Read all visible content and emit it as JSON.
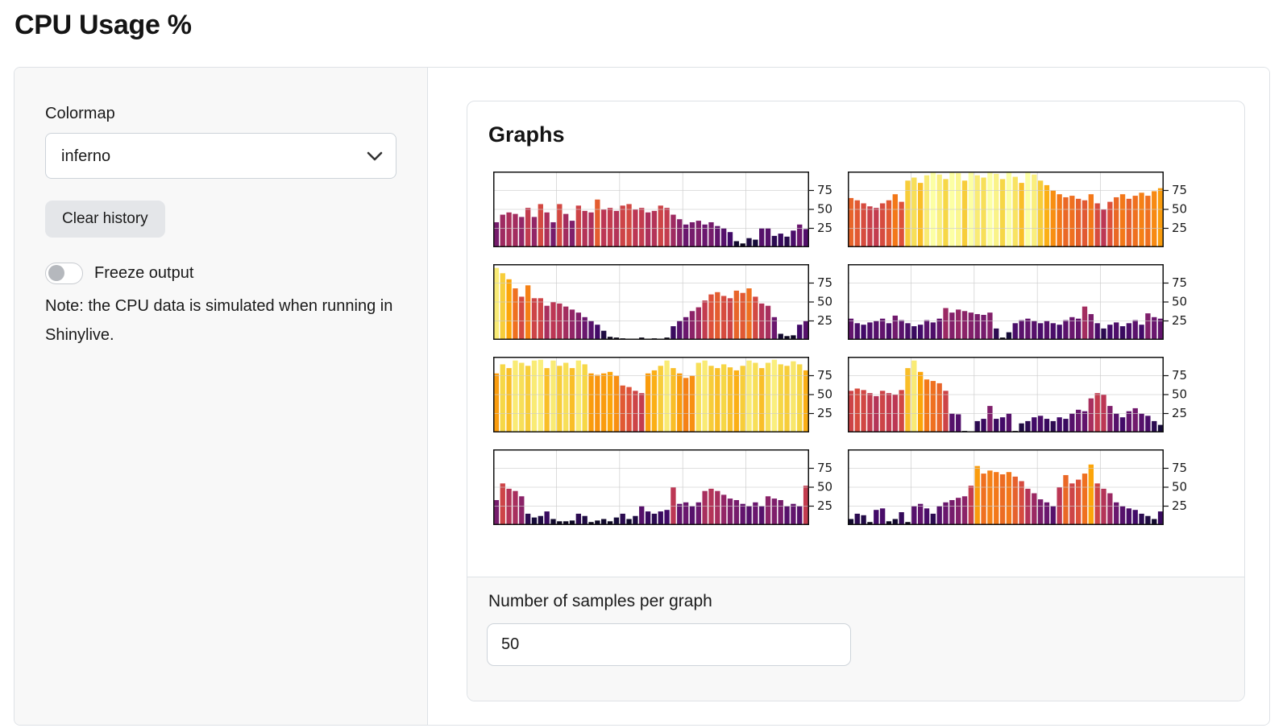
{
  "title": "CPU Usage %",
  "sidebar": {
    "colormap_label": "Colormap",
    "colormap_value": "inferno",
    "clear_history_label": "Clear history",
    "freeze_label": "Freeze output",
    "freeze_state": "off",
    "note": "Note: the CPU data is simulated when running in Shinylive."
  },
  "card": {
    "title": "Graphs",
    "samples_label": "Number of samples per graph",
    "samples_value": "50"
  },
  "chart_data": {
    "type": "bar",
    "layout": "4 rows x 2 columns of mini bar charts",
    "colormap": "inferno",
    "color_rule": "each bar colored by inferno(value/100)",
    "ylim": [
      0,
      100
    ],
    "yticks": [
      25,
      50,
      75
    ],
    "ytick_side": "right",
    "grid": true,
    "x_gridline_every": 10,
    "samples_per_graph": 50,
    "colormap_stops": [
      "#000004",
      "#160b39",
      "#420a68",
      "#6a176e",
      "#932667",
      "#bc3754",
      "#dd513a",
      "#f37819",
      "#fca50a",
      "#f6d746",
      "#fcffa4"
    ],
    "axis_color": "#111111",
    "grid_color": "#cccccc",
    "series": [
      {
        "name": "graph-1",
        "values": [
          33,
          43,
          46,
          44,
          40,
          52,
          40,
          57,
          46,
          33,
          57,
          44,
          35,
          55,
          48,
          46,
          63,
          50,
          52,
          48,
          55,
          57,
          50,
          52,
          46,
          48,
          55,
          52,
          43,
          37,
          30,
          33,
          35,
          30,
          33,
          28,
          25,
          20,
          8,
          5,
          12,
          10,
          25,
          25,
          15,
          18,
          14,
          22,
          30,
          24
        ]
      },
      {
        "name": "graph-2",
        "values": [
          65,
          62,
          58,
          54,
          52,
          58,
          62,
          70,
          60,
          88,
          92,
          85,
          95,
          100,
          96,
          90,
          100,
          98,
          88,
          100,
          95,
          92,
          100,
          97,
          90,
          100,
          93,
          85,
          100,
          96,
          88,
          82,
          75,
          70,
          66,
          68,
          64,
          62,
          70,
          58,
          50,
          60,
          66,
          70,
          64,
          68,
          72,
          68,
          74,
          78
        ]
      },
      {
        "name": "graph-3",
        "values": [
          95,
          88,
          80,
          68,
          57,
          72,
          55,
          55,
          45,
          50,
          48,
          44,
          40,
          36,
          30,
          25,
          20,
          12,
          4,
          3,
          2,
          1,
          1,
          3,
          1,
          2,
          1,
          3,
          18,
          25,
          30,
          38,
          43,
          52,
          60,
          63,
          58,
          55,
          65,
          62,
          68,
          57,
          48,
          45,
          30,
          8,
          5,
          6,
          20,
          25
        ]
      },
      {
        "name": "graph-4",
        "values": [
          28,
          22,
          20,
          23,
          25,
          28,
          22,
          32,
          26,
          22,
          18,
          20,
          26,
          23,
          28,
          42,
          36,
          40,
          38,
          36,
          34,
          33,
          36,
          15,
          3,
          10,
          22,
          26,
          28,
          25,
          22,
          25,
          22,
          20,
          26,
          30,
          28,
          44,
          34,
          22,
          15,
          20,
          23,
          18,
          22,
          26,
          20,
          35,
          30,
          28
        ]
      },
      {
        "name": "graph-5",
        "values": [
          78,
          90,
          85,
          95,
          92,
          88,
          95,
          96,
          85,
          95,
          88,
          92,
          85,
          95,
          90,
          78,
          76,
          78,
          80,
          75,
          62,
          60,
          55,
          52,
          78,
          82,
          88,
          95,
          85,
          78,
          72,
          75,
          92,
          95,
          88,
          85,
          90,
          86,
          82,
          88,
          95,
          92,
          85,
          92,
          96,
          90,
          88,
          94,
          90,
          82
        ]
      },
      {
        "name": "graph-6",
        "values": [
          55,
          58,
          56,
          52,
          48,
          55,
          52,
          50,
          56,
          85,
          95,
          80,
          70,
          68,
          65,
          55,
          25,
          24,
          2,
          1,
          15,
          18,
          35,
          18,
          20,
          25,
          2,
          12,
          15,
          20,
          22,
          18,
          15,
          20,
          18,
          25,
          30,
          28,
          45,
          52,
          50,
          35,
          25,
          20,
          28,
          32,
          25,
          22,
          15,
          10
        ]
      },
      {
        "name": "graph-7",
        "values": [
          33,
          55,
          48,
          45,
          38,
          15,
          10,
          12,
          18,
          8,
          5,
          5,
          6,
          15,
          12,
          4,
          6,
          8,
          5,
          10,
          15,
          8,
          12,
          25,
          18,
          15,
          18,
          20,
          50,
          28,
          30,
          25,
          30,
          45,
          48,
          45,
          40,
          35,
          33,
          28,
          25,
          30,
          25,
          38,
          35,
          33,
          25,
          28,
          25,
          52
        ]
      },
      {
        "name": "graph-8",
        "values": [
          8,
          15,
          13,
          4,
          20,
          22,
          5,
          8,
          17,
          4,
          25,
          28,
          22,
          15,
          25,
          30,
          33,
          36,
          38,
          52,
          78,
          68,
          72,
          70,
          67,
          70,
          64,
          58,
          48,
          42,
          34,
          30,
          25,
          50,
          66,
          55,
          60,
          68,
          80,
          55,
          48,
          42,
          30,
          25,
          22,
          20,
          15,
          12,
          8,
          18
        ]
      }
    ]
  }
}
